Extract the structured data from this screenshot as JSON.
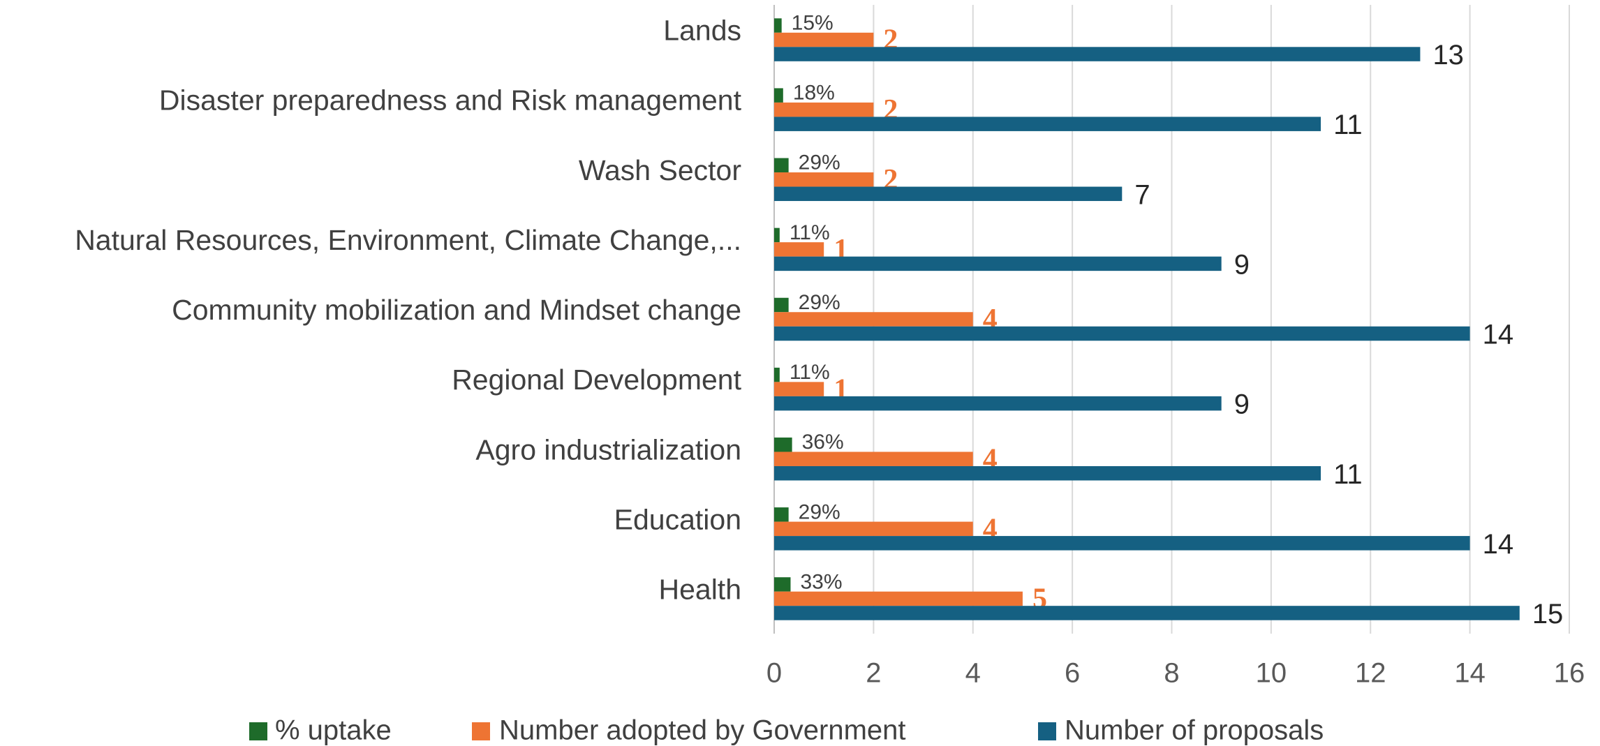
{
  "chart_data": {
    "type": "bar",
    "orientation": "horizontal",
    "categories": [
      "Lands",
      "Disaster preparedness and Risk management",
      "Wash Sector",
      "Natural Resources, Environment, Climate Change,...",
      "Community mobilization and Mindset change",
      "Regional Development",
      "Agro industrialization",
      "Education",
      "Health"
    ],
    "series": [
      {
        "name": "% uptake",
        "color": "#1e6b2a",
        "values": [
          0.15,
          0.18,
          0.29,
          0.11,
          0.29,
          0.11,
          0.36,
          0.29,
          0.33
        ],
        "value_labels": [
          "15%",
          "18%",
          "29%",
          "11%",
          "29%",
          "11%",
          "36%",
          "29%",
          "33%"
        ]
      },
      {
        "name": "Number adopted by Government",
        "color": "#ee7433",
        "values": [
          2,
          2,
          2,
          1,
          4,
          1,
          4,
          4,
          5
        ]
      },
      {
        "name": "Number of proposals",
        "color": "#156082",
        "values": [
          13,
          11,
          7,
          9,
          14,
          9,
          11,
          14,
          15
        ]
      }
    ],
    "xlim": [
      0,
      16
    ],
    "xticks": [
      0,
      2,
      4,
      6,
      8,
      10,
      12,
      14,
      16
    ],
    "grid": true,
    "legend": "bottom"
  }
}
